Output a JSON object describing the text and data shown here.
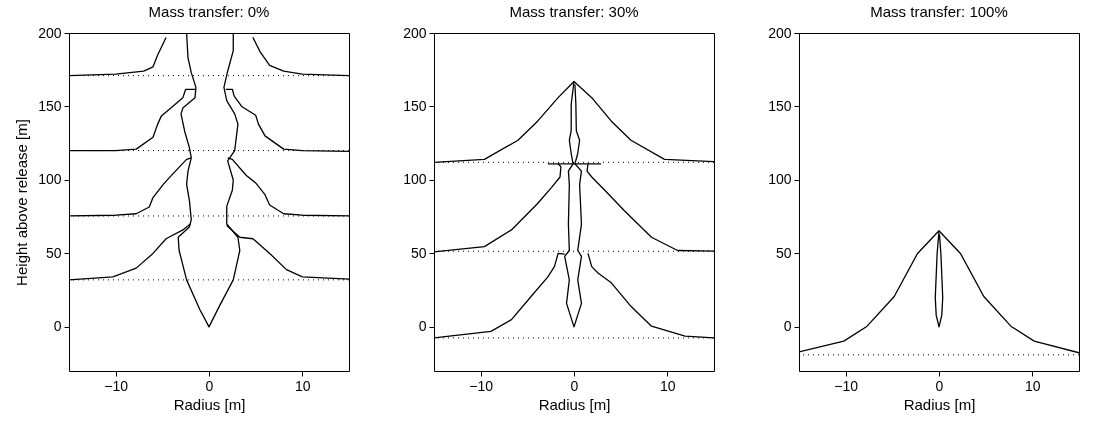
{
  "chart_data": [
    {
      "type": "line",
      "title": "Mass transfer: 0%",
      "xlabel": "Radius [m]",
      "ylabel": "Height above release [m]",
      "xlim": [
        -15,
        15
      ],
      "ylim": [
        -30,
        200
      ],
      "xticks": [
        -10,
        0,
        10
      ],
      "yticks": [
        0,
        50,
        100,
        150,
        200
      ],
      "grid": false,
      "line_style": "solid",
      "series": [
        {
          "color": "#000000",
          "x": [
            -2.4,
            -2.25,
            -1.9,
            -1.4,
            -1.5,
            -2.8,
            -3,
            -2.6,
            -2.1,
            -1.9,
            -2.25,
            -2.4,
            -2.1,
            -1.9,
            -2.1,
            -3.3,
            -3.2,
            -2.4,
            -1,
            0,
            1.1,
            2.6,
            3.3,
            3.1,
            1.9,
            1.9,
            2.5,
            2.6,
            2,
            2.75,
            3.1,
            2.75,
            1.9,
            1.6,
            2,
            2.6,
            2.6
          ],
          "values": [
            200,
            183,
            173,
            163,
            156,
            149,
            145,
            133,
            122,
            115,
            106,
            97,
            86,
            73,
            68,
            61,
            52,
            32,
            12,
            0,
            14,
            32,
            52,
            61,
            70,
            82,
            93,
            100,
            113,
            120,
            138,
            145,
            154,
            163,
            174,
            188,
            200
          ]
        },
        {
          "color": "#000000",
          "x": [
            -15,
            -10,
            -7,
            -6,
            -5.5,
            -4.6
          ],
          "values": [
            171,
            172,
            174,
            177,
            185,
            197
          ]
        },
        {
          "color": "#000000",
          "x": [
            4.7,
            5.5,
            6.5,
            8,
            10,
            15
          ],
          "values": [
            197,
            187,
            178,
            174,
            172,
            171
          ]
        },
        {
          "color": "#000000",
          "x": [
            -15,
            -10,
            -7.8,
            -6,
            -5.5,
            -5.1,
            -3.9,
            -2.8,
            -2.5,
            -1.4
          ],
          "values": [
            120,
            120,
            121,
            129,
            138,
            143.6,
            150,
            156,
            161.7,
            161.7
          ]
        },
        {
          "color": "#000000",
          "x": [
            1.8,
            2.5,
            2.7,
            3.5,
            5,
            5.3,
            6,
            8,
            10,
            15
          ],
          "values": [
            161.7,
            161.7,
            157,
            150,
            144,
            138,
            130,
            121,
            120,
            119.5
          ]
        },
        {
          "color": "#000000",
          "x": [
            -15,
            -10,
            -7.8,
            -6.4,
            -6,
            -4.9,
            -3.9,
            -2.4,
            -1.9
          ],
          "values": [
            75.5,
            76,
            77,
            81.6,
            88,
            97,
            104,
            114,
            115
          ]
        },
        {
          "color": "#000000",
          "x": [
            2,
            2.5,
            4,
            5,
            6,
            6.5,
            8,
            10,
            15
          ],
          "values": [
            115,
            114,
            103,
            98,
            90,
            83,
            77,
            76,
            75.5
          ]
        },
        {
          "color": "#000000",
          "x": [
            -15,
            -10.3,
            -7.8,
            -6,
            -4.6,
            -2.8,
            -2
          ],
          "values": [
            32,
            34,
            40,
            50,
            60,
            66,
            70
          ]
        },
        {
          "color": "#000000",
          "x": [
            1.9,
            3.3,
            4.7,
            6.5,
            8.3,
            10,
            15
          ],
          "values": [
            69,
            61,
            60,
            50,
            39,
            34,
            32.5
          ]
        }
      ],
      "ref_lines": [
        {
          "axis": "y",
          "value": 171,
          "line_style": "dotted"
        },
        {
          "axis": "y",
          "value": 120,
          "line_style": "dotted"
        },
        {
          "axis": "y",
          "value": 75.5,
          "line_style": "dotted"
        },
        {
          "axis": "y",
          "value": 32,
          "line_style": "dotted"
        }
      ]
    },
    {
      "type": "line",
      "title": "Mass transfer: 30%",
      "xlabel": "Radius [m]",
      "xlim": [
        -15,
        15
      ],
      "ylim": [
        -30,
        200
      ],
      "xticks": [
        -10,
        0,
        10
      ],
      "yticks": [
        0,
        50,
        100,
        150,
        200
      ],
      "grid": false,
      "line_style": "solid",
      "series": [
        {
          "color": "#000000",
          "x": [
            0,
            -0.3,
            -0.3,
            -0.5,
            -0.3,
            -0.1,
            -0.6,
            -0.5,
            -0.6,
            -0.5,
            -1,
            -0.5,
            -0.8,
            0,
            0.8,
            0.4,
            0.8,
            0.4,
            0.8,
            0.6,
            0.8,
            0.1,
            0.4,
            0.6,
            0.25,
            0.2,
            0.1
          ],
          "values": [
            167,
            151.5,
            133.5,
            127,
            118,
            111,
            106,
            97,
            70,
            52,
            48,
            32,
            16,
            0,
            16,
            32,
            48,
            52,
            70,
            97,
            106,
            111,
            118,
            127,
            133.5,
            151.5,
            165
          ]
        },
        {
          "color": "#000000",
          "x": [
            -15,
            -9.6,
            -6,
            -3.9,
            -1.7,
            0,
            1.9,
            4,
            6.1,
            9.7,
            15
          ],
          "values": [
            112,
            114,
            127,
            140,
            156,
            167,
            156,
            140,
            127,
            114,
            112.5
          ]
        },
        {
          "color": "#000000",
          "x": [
            -2.8,
            2.9
          ],
          "values": [
            111,
            111
          ]
        },
        {
          "color": "#000000",
          "x": [
            -15,
            -9.6,
            -6.7,
            -3.9,
            -2.4,
            -1.5,
            -1.4,
            -1.7
          ],
          "values": [
            51,
            54.6,
            66,
            84,
            95,
            102,
            109,
            111
          ]
        },
        {
          "color": "#000000",
          "x": [
            1.5,
            1.4,
            1.9,
            3.3,
            5.4,
            8.3,
            11.1,
            15
          ],
          "values": [
            111,
            106,
            102,
            93,
            79,
            61,
            52,
            51.6
          ]
        },
        {
          "color": "#000000",
          "x": [
            -15,
            -8.9,
            -6.7,
            -4.6,
            -2.8,
            -2.1,
            -1.7,
            -1
          ],
          "values": [
            -7.4,
            -3,
            5,
            20.7,
            34,
            41,
            50,
            49.6
          ]
        },
        {
          "color": "#000000",
          "x": [
            1.5,
            1.9,
            2.6,
            4,
            6.1,
            8.3,
            11.9,
            15
          ],
          "values": [
            50,
            41,
            36.5,
            30,
            14,
            0.5,
            -6.3,
            -7.4
          ]
        }
      ],
      "ref_lines": [
        {
          "axis": "y",
          "value": 112,
          "line_style": "dotted"
        },
        {
          "axis": "y",
          "value": 51.5,
          "line_style": "dotted"
        },
        {
          "axis": "y",
          "value": -7.5,
          "line_style": "dotted"
        }
      ]
    },
    {
      "type": "line",
      "title": "Mass transfer: 100%",
      "xlabel": "Radius [m]",
      "xlim": [
        -15,
        15
      ],
      "ylim": [
        -30,
        200
      ],
      "xticks": [
        -10,
        0,
        10
      ],
      "yticks": [
        0,
        50,
        100,
        150,
        200
      ],
      "grid": false,
      "line_style": "solid",
      "series": [
        {
          "color": "#000000",
          "x": [
            0,
            -0.2,
            -0.4,
            -0.3,
            0,
            0.3,
            0.4,
            0.2,
            0.05
          ],
          "values": [
            65,
            50,
            20,
            8,
            0,
            8,
            20,
            50,
            63
          ]
        },
        {
          "color": "#000000",
          "x": [
            -15,
            -10.2,
            -7.7,
            -4.8,
            -2.3,
            0,
            2.3,
            4.8,
            7.7,
            10.2,
            15
          ],
          "values": [
            -17,
            -9.7,
            0.5,
            20.7,
            50,
            65.4,
            50,
            20.7,
            0.5,
            -9.7,
            -17.6
          ]
        }
      ],
      "ref_lines": [
        {
          "axis": "y",
          "value": -19,
          "line_style": "dotted"
        }
      ]
    }
  ]
}
